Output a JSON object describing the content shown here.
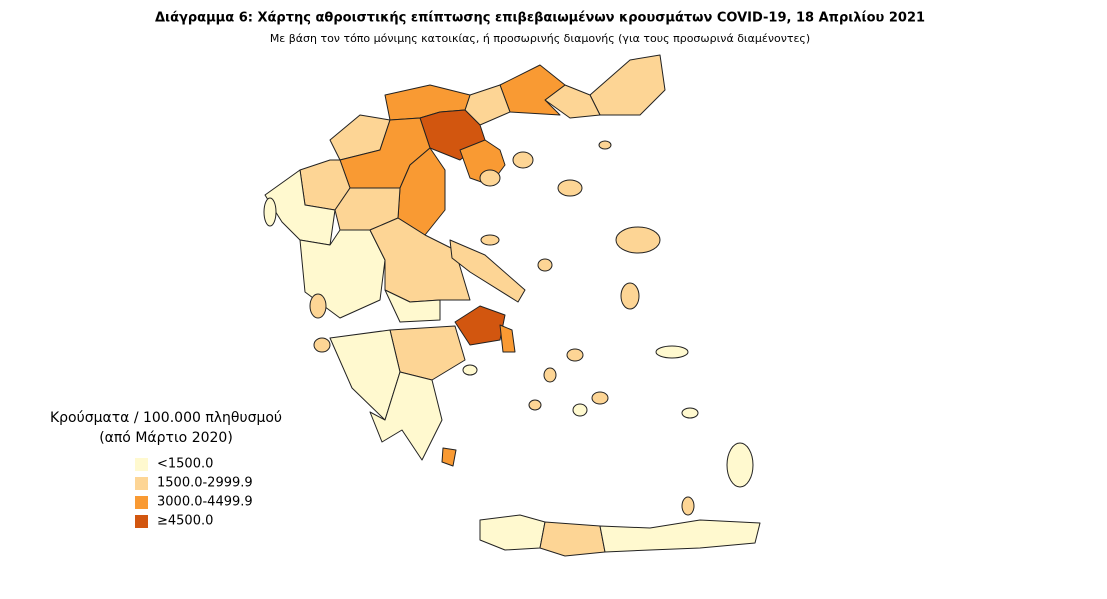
{
  "header": {
    "title": "Διάγραμμα 6: Χάρτης αθροιστικής επίπτωσης επιβεβαιωμένων κρουσμάτων COVID-19, 18 Απριλίου 2021",
    "subtitle": "Με βάση τον τόπο μόνιμης κατοικίας, ή προσωρινής διαμονής (για τους προσωρινά διαμένοντες)"
  },
  "legend": {
    "title": [
      "Κρούσματα / 100.000 πληθυσμού",
      "(από Μάρτιο 2020)"
    ],
    "items": [
      {
        "label": "<1500.0",
        "color": "#fff9cf"
      },
      {
        "label": "1500.0-2999.9",
        "color": "#fdd595"
      },
      {
        "label": "3000.0-4499.9",
        "color": "#f99a33"
      },
      {
        "label": "≥4500.0",
        "color": "#d2560f"
      }
    ]
  }
}
